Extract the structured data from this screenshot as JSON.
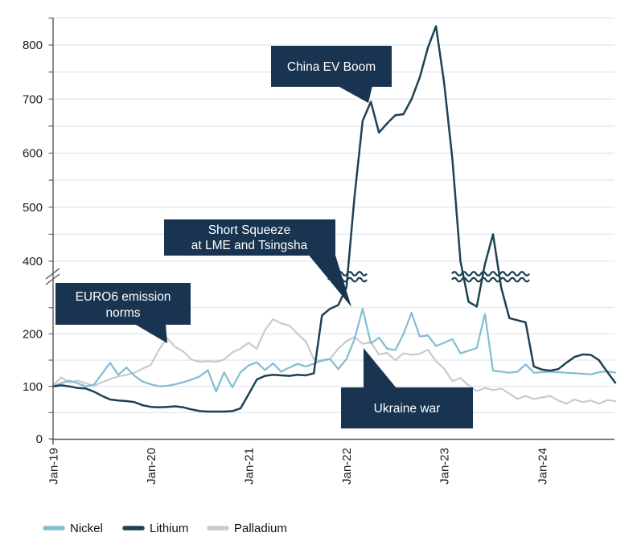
{
  "colors": {
    "nickel": "#82bdd3",
    "lithium": "#1d4254",
    "palladium": "#c8cbcd",
    "annotation_bg": "#183450",
    "annotation_text": "#ffffff",
    "grid": "#dde6f0",
    "axis": "#595959",
    "tick_text": "#1a1a1a"
  },
  "legend": [
    {
      "label": "Nickel",
      "color": "#82bdd3"
    },
    {
      "label": "Lithium",
      "color": "#1d4254"
    },
    {
      "label": "Palladium",
      "color": "#c8cbcd"
    }
  ],
  "annotations": {
    "china_ev_boom": {
      "text": "China EV Boom"
    },
    "short_squeeze": {
      "line1": "Short Squeeze",
      "line2": "at LME and Tsingsha"
    },
    "euro6": {
      "line1": "EURO6 emission",
      "line2": "norms"
    },
    "ukraine_war": {
      "text": "Ukraine war"
    }
  },
  "chart_data": {
    "type": "line",
    "frequency": "monthly",
    "x_start": "Jan-19",
    "x_end": "Oct-24",
    "x_tick_labels": [
      "Jan-19",
      "Jan-20",
      "Jan-21",
      "Jan-22",
      "Jan-23",
      "Jan-24"
    ],
    "x_tick_month_index": [
      0,
      12,
      24,
      36,
      48,
      60
    ],
    "y_ticks": [
      0,
      100,
      200,
      400,
      500,
      600,
      700,
      800
    ],
    "y_minor_step": 50,
    "axis_break": {
      "lower_max": 260,
      "upper_min": 400,
      "note": "y-axis broken between ~260 and 400; wavy break marks drawn on Lithium line where it crosses"
    },
    "ylim": [
      0,
      850
    ],
    "grid": "horizontal-only",
    "legend_position": "bottom-left",
    "series": [
      {
        "name": "Nickel",
        "color": "#82bdd3",
        "width": 2.2,
        "values": [
          100,
          106,
          111,
          106,
          100,
          103,
          124,
          145,
          122,
          136,
          120,
          109,
          104,
          100,
          101,
          104,
          108,
          113,
          119,
          131,
          90,
          127,
          98,
          127,
          140,
          146,
          131,
          144,
          128,
          136,
          143,
          138,
          143,
          150,
          152,
          133,
          152,
          190,
          248,
          182,
          193,
          172,
          169,
          200,
          240,
          195,
          197,
          177,
          183,
          190,
          163,
          168,
          173,
          238,
          130,
          128,
          126,
          128,
          142,
          126,
          127,
          128,
          127,
          126,
          125,
          124,
          123,
          127,
          129,
          126
        ]
      },
      {
        "name": "Lithium",
        "color": "#1d4254",
        "width": 2.5,
        "values": [
          100,
          102,
          100,
          97,
          96,
          90,
          82,
          75,
          73,
          72,
          70,
          64,
          61,
          60,
          61,
          62,
          60,
          56,
          53,
          52,
          52,
          52,
          53,
          58,
          85,
          113,
          120,
          122,
          121,
          120,
          122,
          121,
          125,
          235,
          248,
          255,
          310,
          520,
          660,
          695,
          638,
          655,
          670,
          672,
          700,
          740,
          795,
          835,
          730,
          590,
          400,
          262,
          252,
          390,
          450,
          310,
          230,
          226,
          222,
          138,
          132,
          130,
          133,
          145,
          156,
          161,
          160,
          150,
          128,
          107
        ]
      },
      {
        "name": "Palladium",
        "color": "#c8cbcd",
        "width": 2.2,
        "values": [
          102,
          117,
          107,
          111,
          106,
          101,
          108,
          114,
          119,
          122,
          126,
          134,
          141,
          170,
          192,
          175,
          166,
          151,
          147,
          148,
          147,
          151,
          165,
          172,
          183,
          172,
          207,
          228,
          220,
          216,
          200,
          186,
          152,
          148,
          152,
          172,
          186,
          194,
          181,
          184,
          161,
          164,
          150,
          163,
          160,
          162,
          170,
          148,
          134,
          110,
          116,
          102,
          91,
          97,
          93,
          96,
          86,
          76,
          82,
          76,
          79,
          82,
          73,
          67,
          75,
          70,
          73,
          67,
          74,
          72
        ]
      }
    ]
  }
}
